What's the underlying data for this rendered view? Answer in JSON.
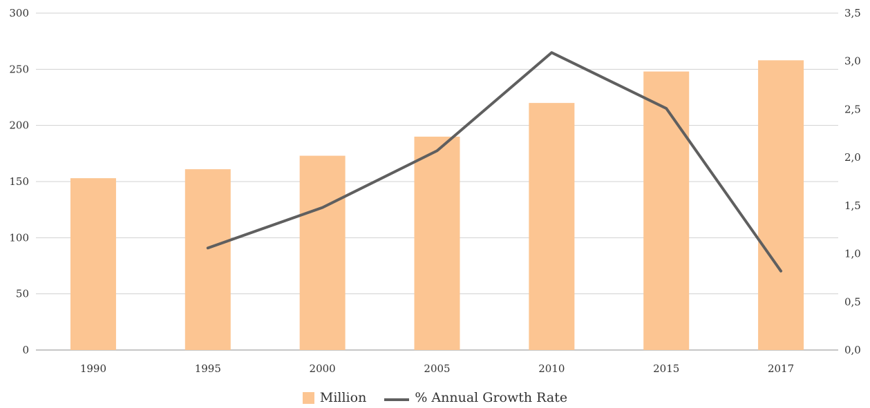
{
  "chart_data": {
    "type": "bar",
    "categories": [
      "1990",
      "1995",
      "2000",
      "2005",
      "2010",
      "2015",
      "2017"
    ],
    "series": [
      {
        "name": "Million",
        "type": "bar",
        "axis": "left",
        "color": "#FCC592",
        "values": [
          153,
          161,
          173,
          190,
          220,
          248,
          258
        ]
      },
      {
        "name": "% Annual Growth Rate",
        "type": "line",
        "axis": "right",
        "color": "#5F5F5F",
        "values": [
          null,
          1.06,
          1.48,
          2.07,
          3.09,
          2.51,
          0.82
        ]
      }
    ],
    "left_axis": {
      "ylim": [
        0,
        300
      ],
      "ticks": [
        "0",
        "50",
        "100",
        "150",
        "200",
        "250",
        "300"
      ]
    },
    "right_axis": {
      "ylim": [
        0,
        3.5
      ],
      "ticks": [
        "0,0",
        "0,5",
        "1,0",
        "1,5",
        "2,0",
        "2,5",
        "3,0",
        "3,5"
      ]
    },
    "grid": true,
    "legend_position": "bottom"
  }
}
